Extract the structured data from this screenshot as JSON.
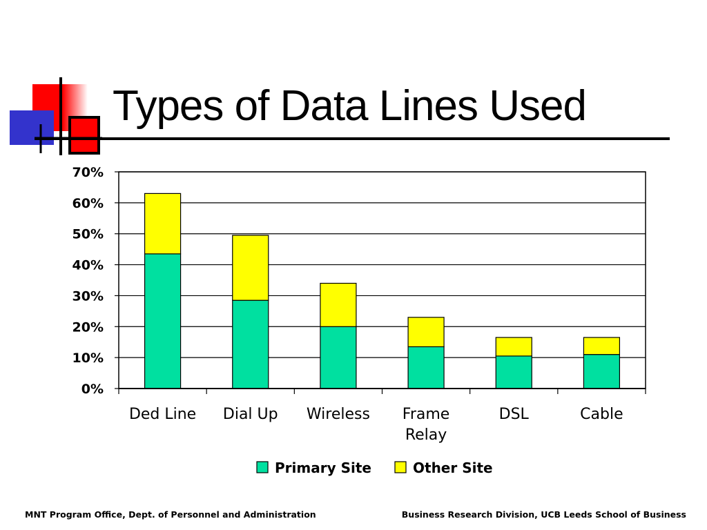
{
  "slide": {
    "title": "Types of Data Lines Used"
  },
  "colors": {
    "logo_red": "#ff0000",
    "logo_blue": "#3333cc",
    "primary_series": "#00e0a0",
    "other_series": "#ffff00"
  },
  "chart_data": {
    "type": "bar",
    "stacked": true,
    "title": "",
    "xlabel": "",
    "ylabel": "",
    "categories": [
      "Ded Line",
      "Dial Up",
      "Wireless",
      "Frame Relay",
      "DSL",
      "Cable"
    ],
    "series": [
      {
        "name": "Primary Site",
        "color": "#00e0a0",
        "values": [
          43.5,
          28.5,
          20.0,
          13.5,
          10.5,
          11.0
        ]
      },
      {
        "name": "Other Site",
        "color": "#ffff00",
        "values": [
          19.5,
          21.0,
          14.0,
          9.5,
          6.0,
          5.5
        ]
      }
    ],
    "ylim": [
      0,
      70
    ],
    "yticks": [
      "0%",
      "10%",
      "20%",
      "30%",
      "40%",
      "50%",
      "60%",
      "70%"
    ],
    "grid": true,
    "legend": "bottom"
  },
  "footer": {
    "left": "MNT Program Office, Dept. of Personnel and Administration",
    "right": "Business Research Division, UCB Leeds School of Business"
  }
}
